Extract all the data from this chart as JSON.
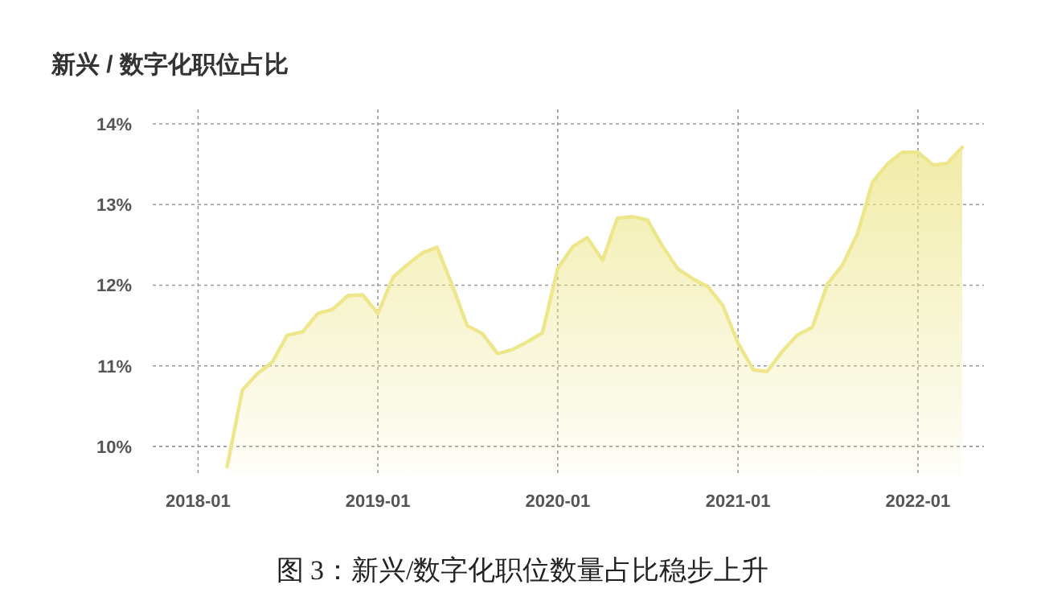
{
  "chart_data": {
    "type": "area",
    "title": "新兴 / 数字化职位占比",
    "annotations": [
      "图 3：新兴/数字化职位数量占比稳步上升"
    ],
    "x": [
      "2018-03",
      "2018-04",
      "2018-05",
      "2018-06",
      "2018-07",
      "2018-08",
      "2018-09",
      "2018-10",
      "2018-11",
      "2018-12",
      "2019-01",
      "2019-02",
      "2019-03",
      "2019-04",
      "2019-05",
      "2019-06",
      "2019-07",
      "2019-08",
      "2019-09",
      "2019-10",
      "2019-11",
      "2019-12",
      "2020-01",
      "2020-02",
      "2020-03",
      "2020-04",
      "2020-05",
      "2020-06",
      "2020-07",
      "2020-08",
      "2020-09",
      "2020-10",
      "2020-11",
      "2020-12",
      "2021-01",
      "2021-02",
      "2021-03",
      "2021-04",
      "2021-05",
      "2021-06",
      "2021-07",
      "2021-08",
      "2021-09",
      "2021-10",
      "2021-11",
      "2021-12",
      "2022-01",
      "2022-02",
      "2022-03",
      "2022-04"
    ],
    "series": [
      {
        "color": "#ede68a",
        "values": [
          9.75,
          10.7,
          10.9,
          11.05,
          11.38,
          11.42,
          11.65,
          11.7,
          11.87,
          11.88,
          11.65,
          12.1,
          12.25,
          12.4,
          12.47,
          12.0,
          11.5,
          11.4,
          11.15,
          11.2,
          11.3,
          11.41,
          12.21,
          12.48,
          12.59,
          12.31,
          12.83,
          12.85,
          12.81,
          12.48,
          12.2,
          12.08,
          11.98,
          11.75,
          11.28,
          10.95,
          10.93,
          11.18,
          11.38,
          11.48,
          12.01,
          12.25,
          12.65,
          13.28,
          13.51,
          13.65,
          13.65,
          13.49,
          13.51,
          13.71
        ]
      }
    ],
    "xlim": [
      "2017-10",
      "2022-05-15"
    ],
    "xticks": [
      "2018-01",
      "2019-01",
      "2020-01",
      "2021-01",
      "2022-01"
    ],
    "ylim": [
      9.65,
      14.18
    ],
    "yticks": [
      {
        "value": 10,
        "label": "10%"
      },
      {
        "value": 11,
        "label": "11%"
      },
      {
        "value": 12,
        "label": "12%"
      },
      {
        "value": 13,
        "label": "13%"
      },
      {
        "value": 14,
        "label": "14%"
      }
    ],
    "grid": true,
    "line_style": "solid",
    "marker": "none"
  }
}
